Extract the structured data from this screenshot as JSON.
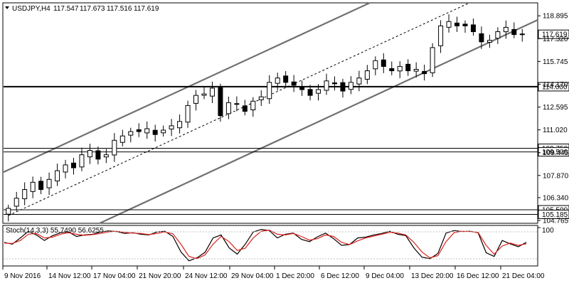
{
  "chart_data": [
    {
      "type": "candlestick",
      "symbol": "USDJPY,H4",
      "ohlc": [
        "117.547",
        "117.673",
        "117.516",
        "117.619"
      ],
      "current_price": 117.619,
      "ylim": [
        104.765,
        119.3
      ],
      "y_ticks": [
        118.895,
        117.32,
        115.745,
        114.17,
        112.595,
        111.02,
        109.445,
        107.87,
        106.34,
        104.765
      ],
      "x_ticks": [
        "9 Nov 2016",
        "14 Nov 12:00",
        "17 Nov 04:00",
        "21 Nov 20:00",
        "24 Nov 12:00",
        "29 Nov 04:00",
        "1 Dec 20:00",
        "6 Dec 12:00",
        "9 Dec 04:00",
        "13 Dec 20:00",
        "16 Dec 12:00",
        "21 Dec 04:00"
      ],
      "horizontal_levels": [
        {
          "value": 114.0,
          "label": "114.000",
          "style": "bold"
        },
        {
          "value": 109.75,
          "label": "109.750",
          "style": "thin"
        },
        {
          "value": 109.5,
          "label": "109.500",
          "style": "thin"
        },
        {
          "value": 105.5,
          "label": "105.500",
          "style": "thin"
        },
        {
          "value": 105.185,
          "label": "105.185",
          "style": "thin"
        }
      ],
      "price_label": "117.619",
      "candles_close": [
        105.6,
        106.3,
        106.9,
        107.4,
        106.9,
        107.6,
        108.2,
        108.6,
        108.4,
        109.3,
        109.6,
        109.0,
        109.3,
        110.3,
        110.6,
        110.9,
        110.9,
        111.1,
        110.7,
        111.0,
        111.3,
        111.6,
        112.7,
        113.4,
        113.5,
        113.9,
        112.0,
        112.9,
        112.8,
        112.3,
        113.0,
        113.3,
        114.3,
        114.6,
        114.3,
        114.1,
        113.8,
        113.4,
        113.8,
        114.4,
        114.2,
        113.7,
        114.3,
        114.6,
        115.1,
        115.8,
        115.4,
        115.1,
        115.4,
        115.1,
        115.2,
        114.9,
        116.7,
        118.2,
        118.5,
        118.2,
        118.2,
        117.8,
        117.1,
        117.2,
        117.8,
        118.1,
        117.6,
        117.6
      ]
    },
    {
      "type": "line",
      "indicator": "Stoch(14,3,3) 55.7490 56.6255",
      "ylim": [
        0,
        100
      ],
      "y_ticks": [
        100
      ],
      "series": [
        {
          "values": [
            60,
            55,
            72,
            90,
            80,
            65,
            78,
            86,
            88,
            76,
            80,
            82,
            88,
            91,
            89,
            84,
            86,
            82,
            80,
            88,
            90,
            76,
            34,
            10,
            18,
            33,
            72,
            80,
            45,
            28,
            55,
            88,
            95,
            92,
            72,
            82,
            85,
            68,
            62,
            75,
            85,
            70,
            52,
            54,
            72,
            74,
            80,
            84,
            90,
            82,
            78,
            45,
            20,
            16,
            30,
            85,
            92,
            89,
            90,
            86,
            32,
            22,
            65,
            56,
            48,
            60
          ]
        },
        {
          "values": [
            58,
            57,
            65,
            82,
            84,
            72,
            74,
            82,
            86,
            82,
            79,
            81,
            84,
            88,
            90,
            87,
            85,
            84,
            81,
            84,
            88,
            83,
            55,
            22,
            16,
            26,
            55,
            76,
            62,
            38,
            44,
            72,
            90,
            93,
            82,
            80,
            84,
            76,
            66,
            70,
            80,
            76,
            60,
            54,
            64,
            72,
            77,
            82,
            87,
            85,
            80,
            60,
            34,
            18,
            24,
            62,
            86,
            90,
            89,
            87,
            52,
            28,
            50,
            58,
            52,
            56
          ]
        }
      ]
    }
  ]
}
